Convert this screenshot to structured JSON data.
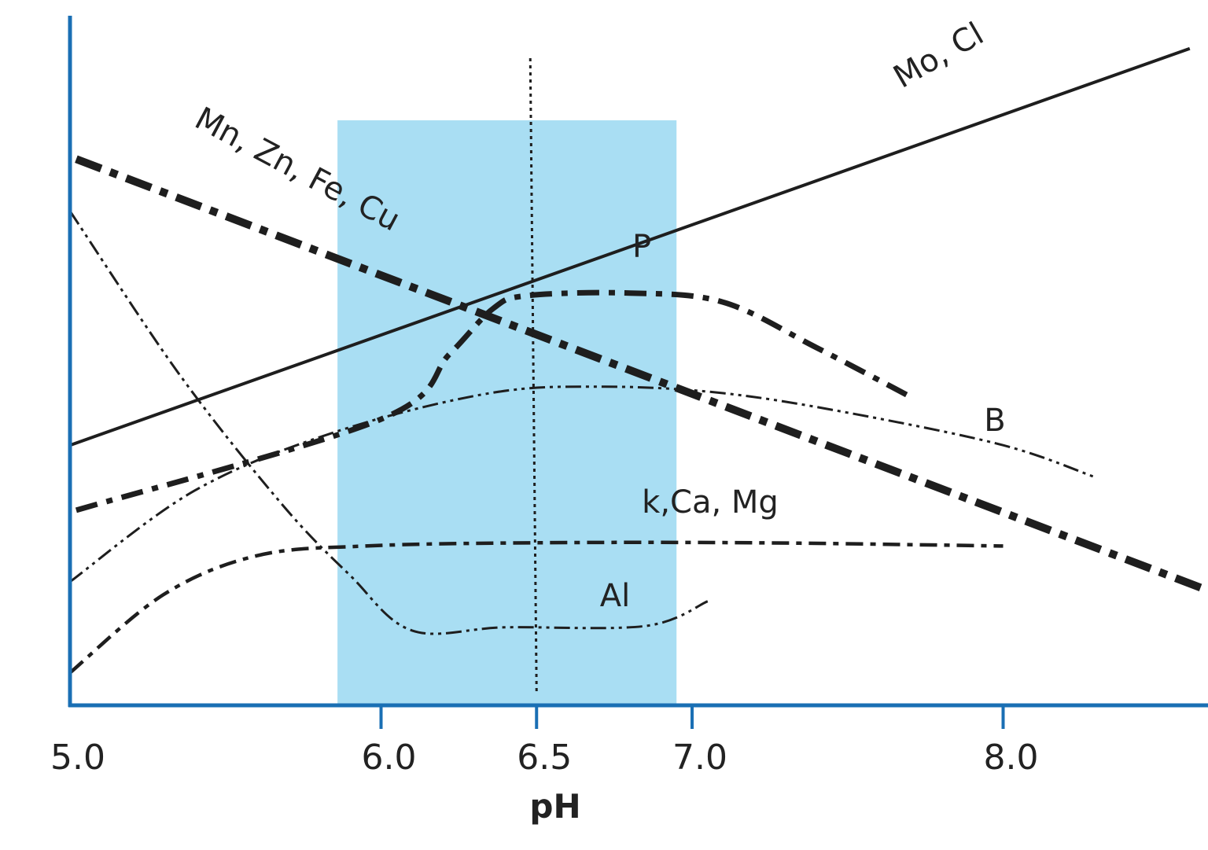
{
  "chart_data": {
    "type": "line",
    "title": "",
    "xlabel": "pH",
    "ylabel": "",
    "xlim": [
      5.0,
      8.75
    ],
    "ylim": [
      0,
      100
    ],
    "x_ticks": [
      {
        "value": 5.0,
        "label": "5.0"
      },
      {
        "value": 6.0,
        "label": "6.0"
      },
      {
        "value": 6.5,
        "label": "6.5"
      },
      {
        "value": 7.0,
        "label": "7.0"
      },
      {
        "value": 8.0,
        "label": "8.0"
      }
    ],
    "optimal_band": {
      "from": 5.86,
      "to": 6.95,
      "color": "#a9def3"
    },
    "reference_line": {
      "x": 6.5
    },
    "axis_color": "#1a6fb4",
    "line_color": "#1e1e1e",
    "series": [
      {
        "name": "Mo, Cl",
        "style": "solid",
        "points": [
          [
            5.0,
            40
          ],
          [
            8.6,
            101
          ]
        ]
      },
      {
        "name": "Mn, Zn, Fe, Cu",
        "style": "thick-dashdot",
        "points": [
          [
            5.02,
            84
          ],
          [
            8.75,
            16
          ]
        ]
      },
      {
        "name": "P",
        "style": "dashdot",
        "points": [
          [
            5.02,
            30
          ],
          [
            6.0,
            44
          ],
          [
            6.22,
            54
          ],
          [
            6.36,
            61
          ],
          [
            6.47,
            63
          ],
          [
            6.8,
            63.4
          ],
          [
            7.1,
            62
          ],
          [
            7.4,
            55
          ],
          [
            7.7,
            47.5
          ]
        ]
      },
      {
        "name": "B",
        "style": "dashdotdot",
        "points": [
          [
            5.0,
            19
          ],
          [
            5.4,
            33
          ],
          [
            5.85,
            42
          ],
          [
            6.35,
            48
          ],
          [
            6.72,
            49
          ],
          [
            7.1,
            48
          ],
          [
            7.5,
            45
          ],
          [
            8.0,
            40
          ],
          [
            8.3,
            35
          ]
        ]
      },
      {
        "name": "k,Ca, Mg",
        "style": "dashdot-light",
        "points": [
          [
            5.0,
            5
          ],
          [
            5.3,
            17
          ],
          [
            5.6,
            23
          ],
          [
            5.95,
            24.5
          ],
          [
            6.5,
            25
          ],
          [
            7.2,
            25
          ],
          [
            8.0,
            24.5
          ]
        ]
      },
      {
        "name": "Al",
        "style": "dashdotdot",
        "points": [
          [
            5.0,
            76
          ],
          [
            5.35,
            51
          ],
          [
            5.68,
            31
          ],
          [
            5.9,
            20
          ],
          [
            6.1,
            11.5
          ],
          [
            6.4,
            12
          ],
          [
            6.85,
            12.2
          ],
          [
            7.05,
            16
          ]
        ]
      }
    ],
    "labels": [
      {
        "series": "Mo, Cl",
        "text": "Mo, Cl"
      },
      {
        "series": "Mn, Zn, Fe, Cu",
        "text": "Mn, Zn, Fe, Cu"
      },
      {
        "series": "P",
        "text": "P"
      },
      {
        "series": "B",
        "text": "B"
      },
      {
        "series": "k,Ca, Mg",
        "text": "k,Ca, Mg"
      },
      {
        "series": "Al",
        "text": "Al"
      }
    ]
  }
}
